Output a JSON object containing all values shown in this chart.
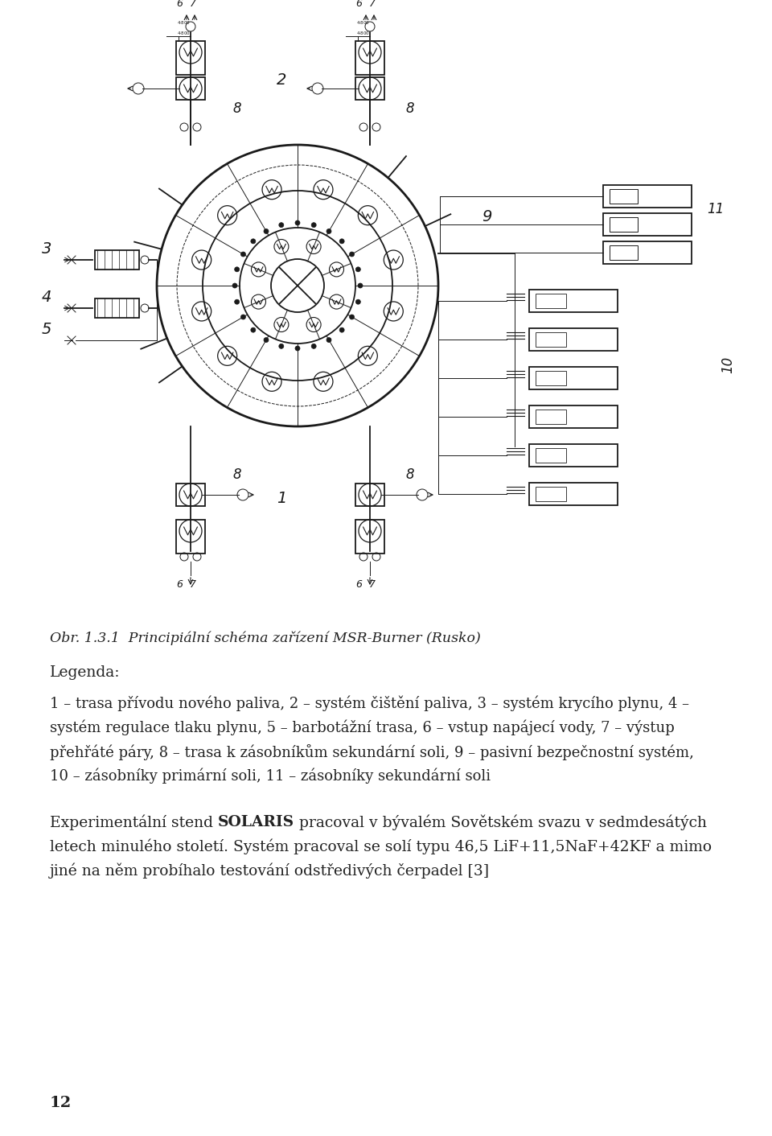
{
  "title_italic": "Obr. 1.3.1  Principiální schéma zařízení MSR-Burner (Rusko)",
  "legend_header": "Legenda:",
  "legend_line1": "1 – trasa přívodu nového paliva, 2 – systém čištění paliva, 3 – systém krycího plynu, 4 –",
  "legend_line2": "systém regulace tlaku plynu, 5 – barbotážní trasa, 6 – vstup napájecí vody, 7 – výstup",
  "legend_line3": "přehřáté páry, 8 – trasa k zásobníkům sekundární soli, 9 – pasivní bezpečnostní systém,",
  "legend_line4": "10 – zásobníky primární soli, 11 – zásobníky sekundární soli",
  "para_line1_before": "Experimentální stend ",
  "para_line1_bold": "SOLARIS",
  "para_line1_after": " pracoval v bývalém Sovětském svazu v sedmdesátých",
  "para_line2": "letech minulého století. Systém pracoval se solí typu 46,5 LiF+11,5NaF+42KF a mimo",
  "para_line3": "jiné na něm probíhalo testování odstředivých čerpadel [3]",
  "page_number": "12",
  "bg_color": "#ffffff",
  "text_color": "#222222",
  "diagram_color": "#1a1a1a",
  "figure_width": 9.6,
  "figure_height": 14.12
}
